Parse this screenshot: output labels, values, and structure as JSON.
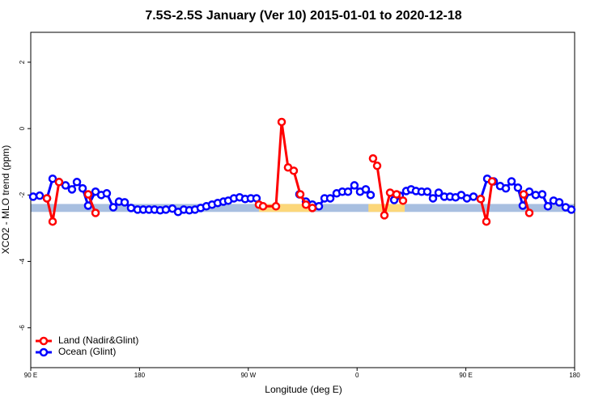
{
  "chart_data": {
    "type": "line",
    "title": "7.5S-2.5S January (Ver 10)   2015-01-01 to 2020-12-18",
    "xlabel": "Longitude (deg E)",
    "ylabel": "XCO2 - MLO trend (ppm)",
    "xlim": [
      90,
      540
    ],
    "ylim": [
      -7.2,
      2.9
    ],
    "xticks": [
      {
        "value": 90,
        "label": "90 E"
      },
      180,
      {
        "value": 270,
        "label": "90 W"
      },
      {
        "value": 360,
        "label": "0"
      },
      {
        "value": 450,
        "label": "90 E"
      },
      {
        "value": 540,
        "label": "180"
      }
    ],
    "yticks": [
      2,
      0,
      -2,
      -4,
      -6
    ],
    "legend": "bottomleft",
    "bands": [
      {
        "color": "#a8bfe0",
        "ylim": [
          -2.51,
          -2.27
        ],
        "xlim": [
          90,
          540
        ]
      },
      {
        "color": "#fcd77a",
        "ylim": [
          -2.51,
          -2.27
        ],
        "xlim": [
          278.8,
          322.4
        ]
      },
      {
        "color": "#fcd77a",
        "ylim": [
          -2.51,
          -2.27
        ],
        "xlim": [
          369.4,
          399.4
        ]
      }
    ],
    "series": [
      {
        "name": "Ocean (Glint)",
        "color": "#0000ff",
        "x": [
          92.0,
          97.4,
          103.4,
          108.1,
          113.4,
          118.8,
          124.1,
          128.2,
          132.9,
          137.5,
          143.6,
          148.3,
          152.9,
          158.3,
          163.0,
          167.7,
          173.0,
          178.4,
          183.1,
          187.8,
          192.4,
          197.1,
          201.8,
          207.2,
          211.9,
          216.6,
          221.2,
          225.9,
          230.6,
          235.3,
          240.0,
          244.7,
          249.4,
          253.4,
          258.1,
          262.8,
          267.4,
          272.1,
          276.8,
          300,
          312.3,
          317.7,
          323.0,
          328.4,
          333.1,
          337.8,
          343.1,
          347.8,
          352.5,
          357.8,
          362.5,
          367.2,
          371.2,
          380,
          390.7,
          395.3,
          400.7,
          404.7,
          408.7,
          413.4,
          418.1,
          422.8,
          427.5,
          432.2,
          436.9,
          441.5,
          446.2,
          450.9,
          456.3,
          462.3,
          467.7,
          473.0,
          478.4,
          483.1,
          487.8,
          493.1,
          497.1,
          502.5,
          507.8,
          513.2,
          517.9,
          522.6,
          527.3,
          532.6,
          537.3
        ],
        "values": [
          -2.05,
          -2.02,
          -2.1,
          -1.51,
          -1.61,
          -1.71,
          -1.83,
          -1.61,
          -1.8,
          -2.32,
          -1.9,
          -2.0,
          -1.95,
          -2.37,
          -2.2,
          -2.22,
          -2.39,
          -2.44,
          -2.44,
          -2.44,
          -2.44,
          -2.46,
          -2.44,
          -2.41,
          -2.51,
          -2.44,
          -2.46,
          -2.44,
          -2.39,
          -2.34,
          -2.29,
          -2.24,
          -2.2,
          -2.17,
          -2.1,
          -2.07,
          -2.12,
          -2.1,
          -2.1,
          null,
          -1.98,
          -2.2,
          -2.29,
          -2.34,
          -2.1,
          -2.1,
          -1.95,
          -1.9,
          -1.9,
          -1.71,
          -1.9,
          -1.83,
          -2.0,
          null,
          -2.15,
          -2.02,
          -1.88,
          -1.83,
          -1.88,
          -1.9,
          -1.9,
          -2.1,
          -1.93,
          -2.05,
          -2.05,
          -2.07,
          -2.0,
          -2.1,
          -2.05,
          -2.12,
          -1.51,
          -1.59,
          -1.73,
          -1.8,
          -1.59,
          -1.78,
          -2.32,
          -1.9,
          -2.0,
          -1.98,
          -2.34,
          -2.17,
          -2.22,
          -2.37,
          -2.44
        ]
      },
      {
        "name": "Land (Nadir&Glint)",
        "color": "#ff0000",
        "x": [
          103.4,
          108.1,
          113.4,
          125,
          137.5,
          143.6,
          200,
          278.8,
          282.2,
          292.9,
          297.6,
          302.9,
          307.6,
          313.0,
          317.7,
          323.0,
          350,
          373.2,
          376.6,
          382.6,
          387.3,
          392.7,
          398.0,
          430,
          462.3,
          467.0,
          471.7,
          490,
          497.8,
          502.5
        ],
        "values": [
          -2.1,
          -2.8,
          -1.61,
          null,
          -1.98,
          -2.54,
          null,
          -2.29,
          -2.34,
          -2.34,
          0.2,
          -1.17,
          -1.27,
          -1.98,
          -2.29,
          -2.39,
          null,
          -0.9,
          -1.12,
          -2.61,
          -1.93,
          -1.98,
          -2.17,
          null,
          -2.12,
          -2.8,
          -1.59,
          null,
          -1.98,
          -2.54
        ]
      }
    ]
  }
}
